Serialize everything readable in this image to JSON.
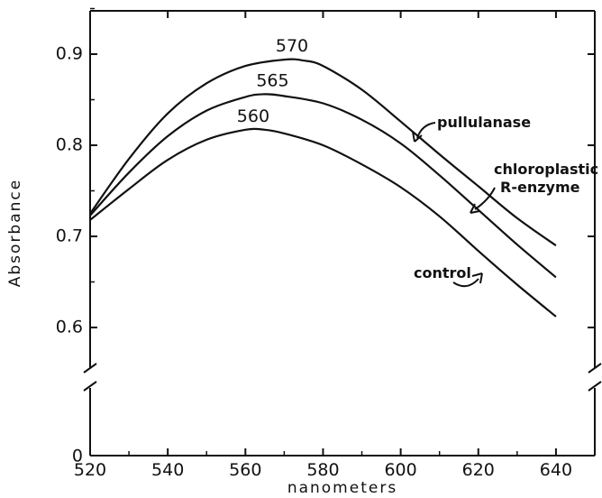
{
  "chart_data": {
    "type": "line",
    "xlabel": "nanometers",
    "ylabel": "Absorbance",
    "xlim": [
      520,
      650
    ],
    "ylim": [
      0,
      1.0
    ],
    "y_axis_break": true,
    "x_ticks": [
      520,
      540,
      560,
      580,
      600,
      620,
      640
    ],
    "x_tick_labels": [
      "520",
      "540",
      "560",
      "580",
      "600",
      "620",
      "640"
    ],
    "y_ticks": [
      0.6,
      0.7,
      0.8,
      0.9
    ],
    "y_tick_labels": [
      "0.6",
      "0.7",
      "0.8",
      "0.9"
    ],
    "y_zero_label": "0",
    "series": [
      {
        "name": "pullulanase",
        "x": [
          520,
          530,
          540,
          550,
          560,
          570,
          575,
          580,
          590,
          600,
          610,
          620,
          630,
          640
        ],
        "y": [
          0.725,
          0.785,
          0.835,
          0.868,
          0.887,
          0.894,
          0.893,
          0.887,
          0.861,
          0.826,
          0.79,
          0.755,
          0.72,
          0.69
        ]
      },
      {
        "name": "chloroplastic R-enzyme",
        "x": [
          520,
          530,
          540,
          550,
          560,
          565,
          570,
          580,
          590,
          600,
          610,
          620,
          630,
          640
        ],
        "y": [
          0.723,
          0.77,
          0.81,
          0.838,
          0.853,
          0.856,
          0.854,
          0.846,
          0.828,
          0.802,
          0.767,
          0.729,
          0.691,
          0.655
        ]
      },
      {
        "name": "control",
        "x": [
          520,
          530,
          540,
          550,
          560,
          565,
          570,
          580,
          590,
          600,
          610,
          620,
          630,
          640
        ],
        "y": [
          0.718,
          0.752,
          0.784,
          0.806,
          0.817,
          0.817,
          0.813,
          0.8,
          0.779,
          0.754,
          0.722,
          0.684,
          0.647,
          0.612
        ]
      }
    ],
    "peak_labels": [
      {
        "text": "570",
        "x": 572,
        "y": 0.894
      },
      {
        "text": "565",
        "x": 567,
        "y": 0.856
      },
      {
        "text": "560",
        "x": 562,
        "y": 0.817
      }
    ],
    "annotations": [
      {
        "text": "pullulanase",
        "points_to_series": "pullulanase"
      },
      {
        "text": "chloroplastic",
        "points_to_series": "chloroplastic R-enzyme"
      },
      {
        "text": "R-enzyme",
        "points_to_series": "chloroplastic R-enzyme"
      },
      {
        "text": "control",
        "points_to_series": "control"
      }
    ]
  }
}
